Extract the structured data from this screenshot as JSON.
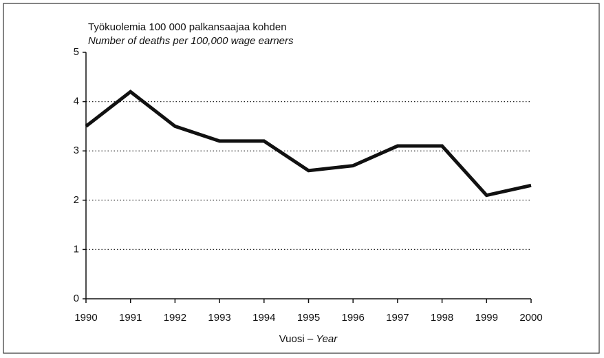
{
  "chart_data": {
    "type": "line",
    "title": "Työkuolemia 100 000 palkansaajaa kohden",
    "subtitle": "Number of deaths per 100,000 wage earners",
    "xlabel": "Vuosi –",
    "xlabel_en": "Year",
    "x": [
      1990,
      1991,
      1992,
      1993,
      1994,
      1995,
      1996,
      1997,
      1998,
      1999,
      2000
    ],
    "values": [
      3.5,
      4.2,
      3.5,
      3.2,
      3.2,
      2.6,
      2.7,
      3.1,
      3.1,
      2.1,
      2.3
    ],
    "color": "#111111",
    "xlim": [
      1990,
      2000
    ],
    "xticks": [
      1990,
      1991,
      1992,
      1993,
      1994,
      1995,
      1996,
      1997,
      1998,
      1999,
      2000
    ],
    "ylim": [
      0,
      5
    ],
    "yticks": [
      0,
      1,
      2,
      3,
      4,
      5
    ],
    "grid": true
  }
}
